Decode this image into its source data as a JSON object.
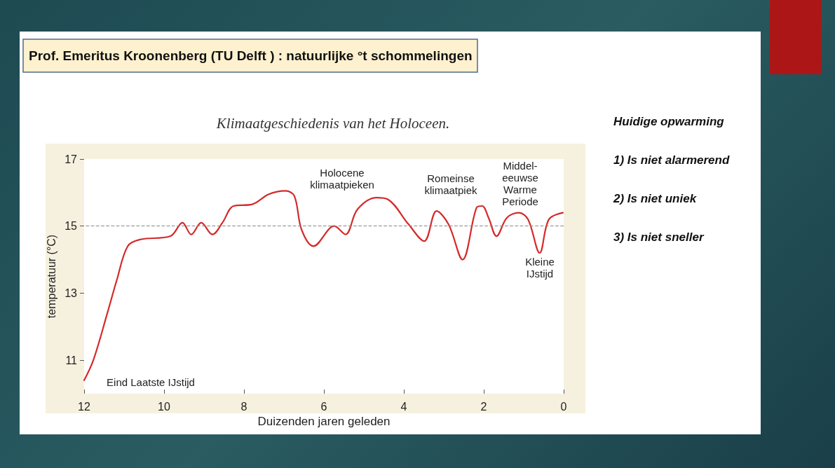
{
  "chart_data": {
    "type": "line",
    "title": "Prof. Emeritus Kroonenberg (TU Delft ) : natuurlijke °t schommelingen",
    "subtitle": "Klimaatgeschiedenis van het Holoceen.",
    "xlabel": "Duizenden jaren geleden",
    "ylabel": "temperatuur (°C)",
    "x": [
      12,
      11.77,
      11.42,
      11.18,
      10.91,
      10.6,
      9.84,
      9.54,
      9.32,
      9.07,
      8.79,
      8.54,
      8.26,
      7.79,
      7.38,
      6.96,
      6.74,
      6.56,
      6.26,
      5.74,
      5.46,
      5.16,
      4.68,
      4.4,
      3.88,
      3.49,
      3.18,
      2.88,
      2.53,
      2.18,
      2.04,
      1.88,
      1.68,
      1.42,
      1.12,
      0.89,
      0.6,
      0.37,
      0.02
    ],
    "series": [
      {
        "color": "#d42a2a",
        "values": [
          10.4,
          11.0,
          12.4,
          13.4,
          14.4,
          14.6,
          14.7,
          15.1,
          14.75,
          15.1,
          14.75,
          15.1,
          15.6,
          15.65,
          15.95,
          16.05,
          15.9,
          14.9,
          14.4,
          15.0,
          14.75,
          15.5,
          15.85,
          15.8,
          15.05,
          14.55,
          15.45,
          15.05,
          14.0,
          15.55,
          15.6,
          15.25,
          14.7,
          15.25,
          15.4,
          15.2,
          14.2,
          15.2,
          15.4
        ]
      }
    ],
    "xlim": [
      12,
      0
    ],
    "xticks": [
      12,
      10,
      8,
      6,
      4,
      2,
      0
    ],
    "ylim": [
      10,
      17
    ],
    "yticks": [
      11,
      13,
      15,
      17
    ],
    "grid": false,
    "marker": "none",
    "line_style": "solid",
    "ref_lines": [
      {
        "axis": "y",
        "value": 15,
        "color": "#888888",
        "line_style": "dashed"
      }
    ],
    "annotations": [
      "Eind Laatste IJstijd",
      "Holocene\nklimaatpieken",
      "Romeinse\nklimaatpiek",
      "Middel-\neeuwse\nWarme\nPeriode",
      "Kleine\nIJstijd",
      "Huidige opwarming",
      "1) Is niet alarmerend",
      "2) Is niet uniek",
      "3) Is niet sneller"
    ]
  }
}
